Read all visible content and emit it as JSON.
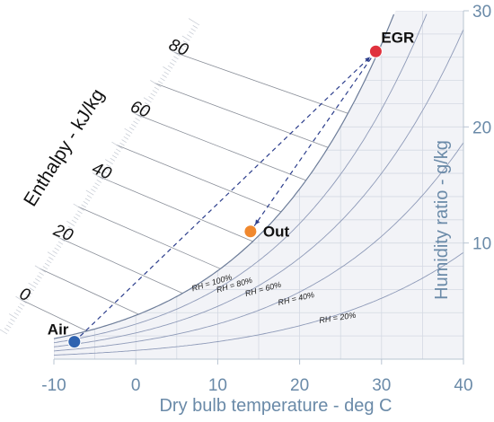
{
  "chart_data": {
    "type": "scatter",
    "title": "",
    "xlabel": "Dry bulb temperature - deg C",
    "ylabel": "Humidity ratio - g/kg",
    "enthalpy_label": "Enthalpy - kJ/kg",
    "xlim": [
      -10,
      40
    ],
    "ylim": [
      0,
      30
    ],
    "x_ticks": [
      "-10",
      "0",
      "10",
      "20",
      "30",
      "40"
    ],
    "y_ticks": [
      "10",
      "20",
      "30"
    ],
    "enthalpy_ticks": [
      "0",
      "20",
      "40",
      "60",
      "80"
    ],
    "rh_curves": [
      {
        "label": "RH = 100%",
        "rh": 1.0
      },
      {
        "label": "RH = 80%",
        "rh": 0.8
      },
      {
        "label": "RH = 60%",
        "rh": 0.6
      },
      {
        "label": "RH = 40%",
        "rh": 0.4
      },
      {
        "label": "RH = 20%",
        "rh": 0.2
      }
    ],
    "points": [
      {
        "name": "Air",
        "x": -7.5,
        "y": 1.5,
        "color": "#2f63b0"
      },
      {
        "name": "Out",
        "x": 14,
        "y": 11,
        "color": "#f0882e"
      },
      {
        "name": "EGR",
        "x": 29.3,
        "y": 26.5,
        "color": "#e0323e"
      }
    ],
    "lines": [
      {
        "from": "Air",
        "to": "EGR",
        "style": "dashed",
        "color": "#2c3e8c"
      },
      {
        "from": "EGR",
        "to": "Out",
        "style": "dashed",
        "color": "#2c3e8c"
      }
    ],
    "grid": true
  }
}
